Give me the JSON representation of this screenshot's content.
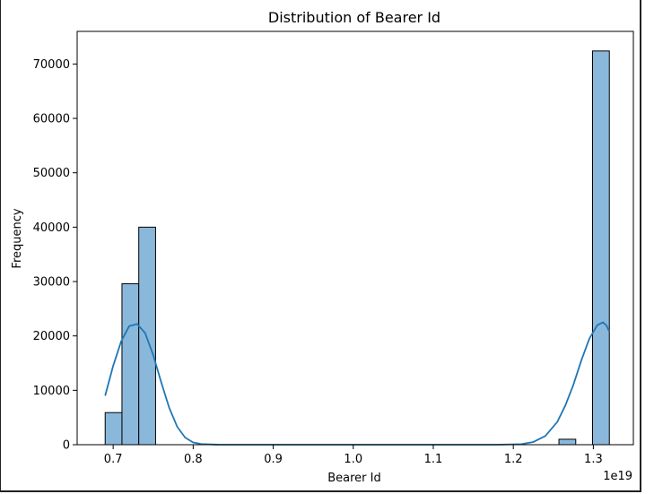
{
  "chart_data": {
    "type": "bar",
    "title": "Distribution of Bearer Id",
    "xlabel": "Bearer Id",
    "ylabel": "Frequency",
    "x_offset_label": "1e19",
    "x_scale_exponent": 19,
    "xlim": [
      0.655,
      1.35
    ],
    "ylim": [
      0,
      76000
    ],
    "x_ticks": [
      0.7,
      0.8,
      0.9,
      1.0,
      1.1,
      1.2,
      1.3
    ],
    "x_tick_labels": [
      "0.7",
      "0.8",
      "0.9",
      "1.0",
      "1.1",
      "1.2",
      "1.3"
    ],
    "y_ticks": [
      0,
      10000,
      20000,
      30000,
      40000,
      50000,
      60000,
      70000
    ],
    "y_tick_labels": [
      "0",
      "10000",
      "20000",
      "30000",
      "40000",
      "50000",
      "60000",
      "70000"
    ],
    "bins": [
      {
        "x0": 0.69,
        "x1": 0.711,
        "count": 5900
      },
      {
        "x0": 0.711,
        "x1": 0.732,
        "count": 29600
      },
      {
        "x0": 0.732,
        "x1": 0.753,
        "count": 40000
      },
      {
        "x0": 1.257,
        "x1": 1.278,
        "count": 1000
      },
      {
        "x0": 1.299,
        "x1": 1.32,
        "count": 72400
      }
    ],
    "kde": [
      [
        0.69,
        9000
      ],
      [
        0.7,
        14500
      ],
      [
        0.71,
        19000
      ],
      [
        0.72,
        21800
      ],
      [
        0.73,
        22200
      ],
      [
        0.74,
        20500
      ],
      [
        0.75,
        16500
      ],
      [
        0.76,
        11500
      ],
      [
        0.77,
        6800
      ],
      [
        0.78,
        3300
      ],
      [
        0.79,
        1300
      ],
      [
        0.8,
        400
      ],
      [
        0.81,
        120
      ],
      [
        0.83,
        10
      ],
      [
        0.86,
        0
      ],
      [
        1.0,
        0
      ],
      [
        1.18,
        0
      ],
      [
        1.21,
        100
      ],
      [
        1.225,
        500
      ],
      [
        1.24,
        1600
      ],
      [
        1.255,
        4200
      ],
      [
        1.265,
        7200
      ],
      [
        1.275,
        11000
      ],
      [
        1.285,
        15500
      ],
      [
        1.295,
        19500
      ],
      [
        1.305,
        22000
      ],
      [
        1.312,
        22500
      ],
      [
        1.316,
        22000
      ],
      [
        1.32,
        20800
      ]
    ],
    "bar_color": "#8ab8db",
    "line_color": "#1f77b4",
    "grid": false,
    "legend": "none"
  }
}
